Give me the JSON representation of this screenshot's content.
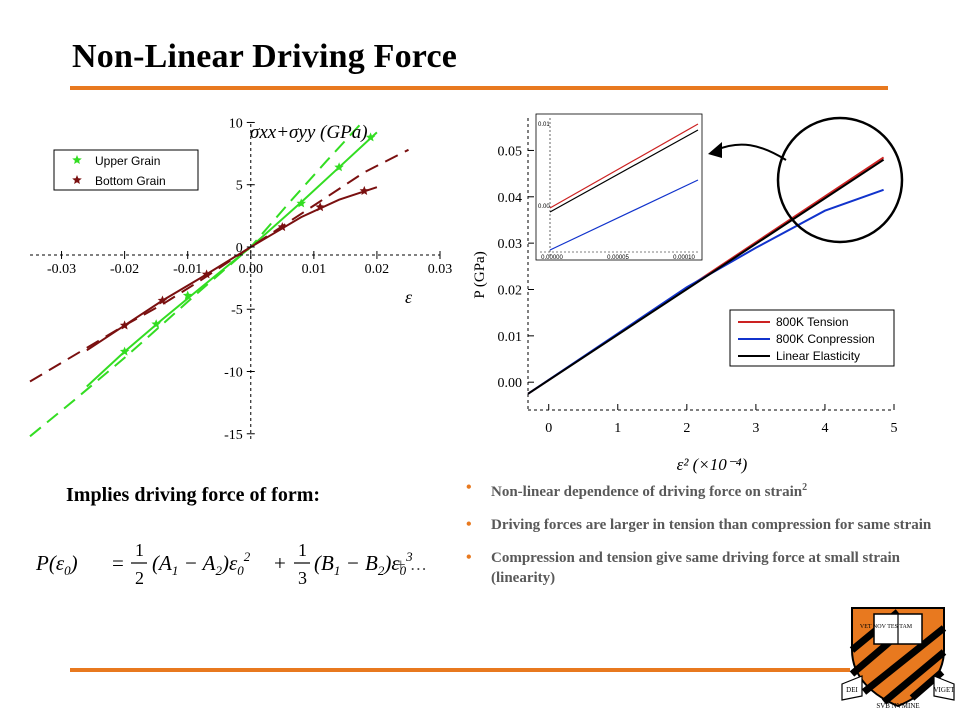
{
  "slide": {
    "title": "Non-Linear Driving Force",
    "implies_text": "Implies driving force of form:",
    "bullets": [
      {
        "text": "Non-linear dependence of driving force on strain",
        "sup": "2"
      },
      {
        "text": "Driving forces are larger in tension than compression for same strain",
        "sup": ""
      },
      {
        "text": "Compression and tension give same driving force at small strain (linearity)",
        "sup": ""
      }
    ],
    "accent_color": "#e8791f",
    "logo": {
      "banner_left": "DEI",
      "banner_right": "VIGET",
      "banner_bottom": "SVB NVMINE",
      "book_text": "VET NOV TES TAM"
    }
  },
  "formula": {
    "lhs": "P(ε",
    "lhs_sub": "0",
    "lhs_end": ")",
    "equals": "=",
    "frac1_num": "1",
    "frac1_den": "2",
    "term1": "(A",
    "term1_sub1": "1",
    "term1_mid": " − A",
    "term1_sub2": "2",
    "term1_end": ")ε",
    "term1_sub3": "0",
    "term1_pow": "2",
    "plus": "+",
    "frac2_num": "1",
    "frac2_den": "3",
    "term2": "(B",
    "term2_sub1": "1",
    "term2_mid": " − B",
    "term2_sub2": "2",
    "term2_end": ")ε",
    "term2_sub3": "0",
    "term2_pow": "3",
    "tail": "+ …"
  },
  "chart_data": [
    {
      "type": "line",
      "title": "σxx+σyy (GPa)",
      "xlabel": "ε",
      "ylabel": "σxx+σyy (GPa)",
      "xlim": [
        -0.035,
        0.03
      ],
      "ylim": [
        -15.5,
        11
      ],
      "x_ticks": [
        -0.03,
        -0.02,
        -0.01,
        0.0,
        0.01,
        0.02,
        0.03
      ],
      "x_tick_labels": [
        "-0.03",
        "-0.02",
        "-0.01",
        "0.00",
        "0.01",
        "0.02",
        "0.03"
      ],
      "y_ticks": [
        10,
        5,
        0,
        -5,
        -10,
        -15
      ],
      "y_tick_labels": [
        "10",
        "5",
        "0",
        "-5",
        "-10",
        "-15"
      ],
      "legend_position": "top-left",
      "series": [
        {
          "name": "Upper Grain",
          "color": "#33dd22",
          "style": "solid",
          "marker": "star",
          "x": [
            -0.026,
            -0.02,
            -0.014,
            -0.008,
            0,
            0.008,
            0.014,
            0.02
          ],
          "y": [
            -11.2,
            -8.4,
            -5.8,
            -3.3,
            0,
            3.6,
            6.4,
            9.2
          ],
          "marker_x": [
            -0.02,
            -0.015,
            -0.01,
            0.008,
            0.014,
            0.019
          ],
          "marker_y": [
            -8.4,
            -6.2,
            -3.9,
            3.5,
            6.4,
            8.8
          ]
        },
        {
          "name": "",
          "color": "#33dd22",
          "style": "dashed",
          "x": [
            -0.035,
            -0.028,
            -0.02,
            -0.014,
            -0.008,
            0,
            0.006,
            0.012,
            0.018
          ],
          "y": [
            -15.2,
            -12.3,
            -8.9,
            -6.2,
            -3.5,
            0,
            3.5,
            6.9,
            10.2
          ]
        },
        {
          "name": "Bottom Grain",
          "color": "#7a1010",
          "style": "solid",
          "marker": "star",
          "x": [
            -0.026,
            -0.02,
            -0.014,
            -0.008,
            0,
            0.008,
            0.014,
            0.02
          ],
          "y": [
            -8.3,
            -6.3,
            -4.3,
            -2.5,
            0,
            2.4,
            3.8,
            4.8
          ],
          "marker_x": [
            -0.02,
            -0.014,
            -0.007,
            0.005,
            0.011,
            0.018
          ],
          "marker_y": [
            -6.3,
            -4.3,
            -2.2,
            1.6,
            3.2,
            4.5
          ]
        },
        {
          "name": "",
          "color": "#7a1010",
          "style": "dashed",
          "x": [
            -0.035,
            -0.028,
            -0.02,
            -0.014,
            -0.008,
            0,
            0.006,
            0.012,
            0.018,
            0.025
          ],
          "y": [
            -10.8,
            -8.7,
            -6.3,
            -4.6,
            -2.7,
            0,
            2.0,
            4.0,
            6.0,
            7.8
          ]
        }
      ]
    },
    {
      "type": "line",
      "title": "",
      "xlabel": "ε² (×10⁻⁴)",
      "ylabel": "P (GPa)",
      "xlim": [
        -0.3,
        5
      ],
      "ylim": [
        -0.006,
        0.057
      ],
      "x_ticks": [
        0,
        1,
        2,
        3,
        4,
        5
      ],
      "x_tick_labels": [
        "0",
        "1",
        "2",
        "3",
        "4",
        "5"
      ],
      "y_ticks": [
        0.0,
        0.01,
        0.02,
        0.03,
        0.04,
        0.05
      ],
      "y_tick_labels": [
        "0.00",
        "0.01",
        "0.02",
        "0.03",
        "0.04",
        "0.05"
      ],
      "legend_position": "bottom-right",
      "series": [
        {
          "name": "800K Tension",
          "color": "#cc2222",
          "x": [
            -0.3,
            4.85
          ],
          "y": [
            -0.0025,
            0.0485
          ]
        },
        {
          "name": "800K Conpression",
          "color": "#1133cc",
          "x": [
            -0.3,
            2.0,
            3.0,
            4.0,
            4.85
          ],
          "y": [
            -0.0025,
            0.0205,
            0.029,
            0.037,
            0.0415
          ]
        },
        {
          "name": "Linear Elasticity",
          "color": "#000000",
          "x": [
            -0.3,
            4.85
          ],
          "y": [
            -0.0025,
            0.048
          ]
        }
      ],
      "inset": {
        "x_tick_labels": [
          "0.00000",
          "0.00005",
          "0.00010"
        ],
        "y_tick_labels": [
          "0.01",
          "0.00"
        ]
      }
    }
  ]
}
